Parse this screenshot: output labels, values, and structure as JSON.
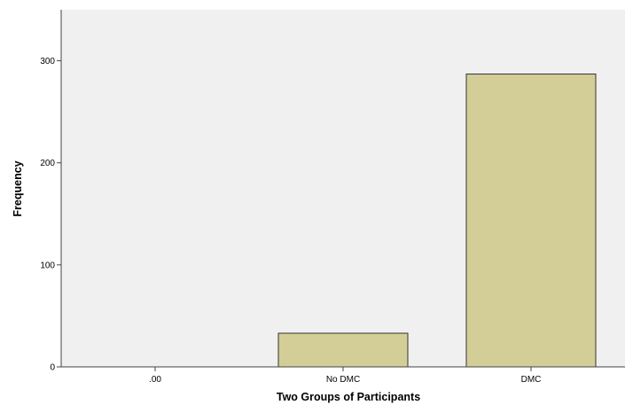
{
  "chart_data": {
    "type": "bar",
    "title": "",
    "xlabel": "Two Groups of Participants",
    "ylabel": "Frequency",
    "categories": [
      ".00",
      "No DMC",
      "DMC"
    ],
    "values": [
      0,
      33,
      287
    ],
    "ylim": [
      0,
      350
    ],
    "yticks": [
      0,
      100,
      200,
      300
    ],
    "ytick_labels": [
      "0",
      "100",
      "200",
      "300"
    ],
    "grid": false,
    "legend": "none",
    "colors": {
      "plot_background": "#f0f0f0",
      "bar_fill": "#d3ce97",
      "bar_stroke": "#333333",
      "axis": "#444444"
    }
  }
}
